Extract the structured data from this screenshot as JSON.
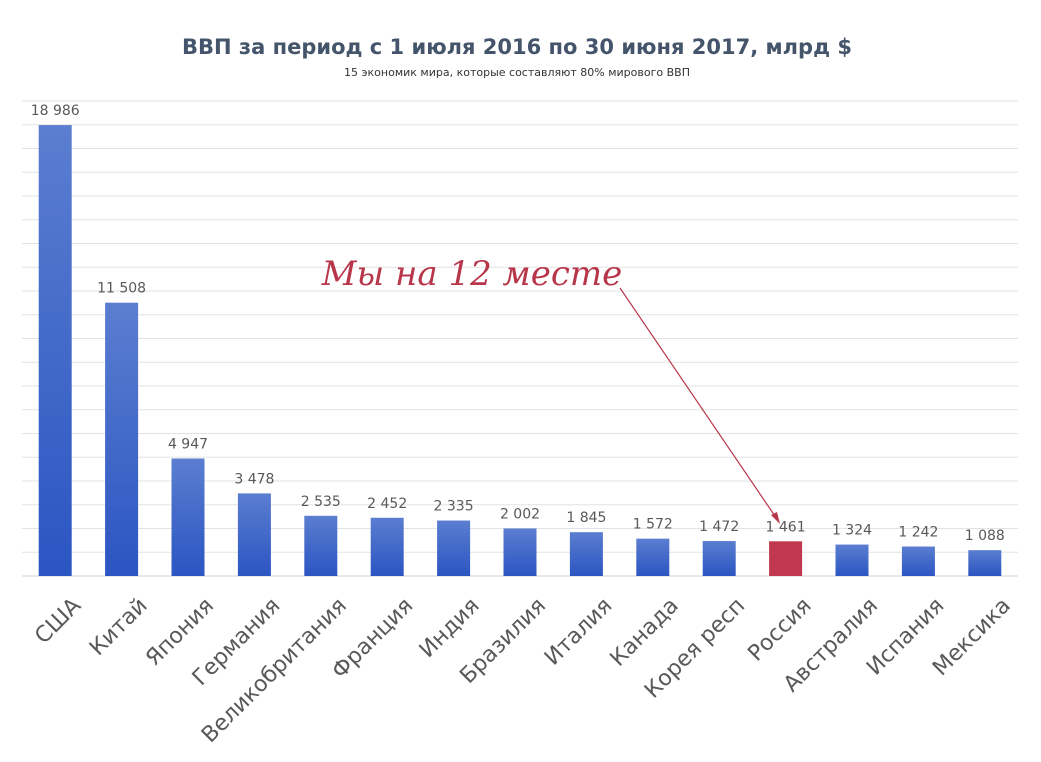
{
  "chart_data": {
    "type": "bar",
    "title": "ВВП за период с 1 июля 2016 по 30 июня 2017, млрд $",
    "subtitle": "15 экономик мира, которые составляют 80% мирового ВВП",
    "categories": [
      "США",
      "Китай",
      "Япония",
      "Германия",
      "Великобритания",
      "Франция",
      "Индия",
      "Бразилия",
      "Италия",
      "Канада",
      "Корея респ",
      "Россия",
      "Австралия",
      "Испания",
      "Мексика"
    ],
    "values": [
      18986,
      11508,
      4947,
      3478,
      2535,
      2452,
      2335,
      2002,
      1845,
      1572,
      1472,
      1461,
      1324,
      1242,
      1088
    ],
    "value_labels": [
      "18 986",
      "11 508",
      "4 947",
      "3 478",
      "2 535",
      "2 452",
      "2 335",
      "2 002",
      "1 845",
      "1 572",
      "1 472",
      "1 461",
      "1 324",
      "1 242",
      "1 088"
    ],
    "highlight_category": "Россия",
    "ylim": [
      0,
      20000
    ],
    "grid": true,
    "annotation": "Мы на 12 месте",
    "colors": {
      "bar_top": "#5b7ed0",
      "bar_bottom": "#2b55c2",
      "highlight": "#c0384e",
      "annotation": "#b8364a",
      "title": "#44546a",
      "text": "#595959",
      "grid": "#e3e3e3"
    }
  }
}
